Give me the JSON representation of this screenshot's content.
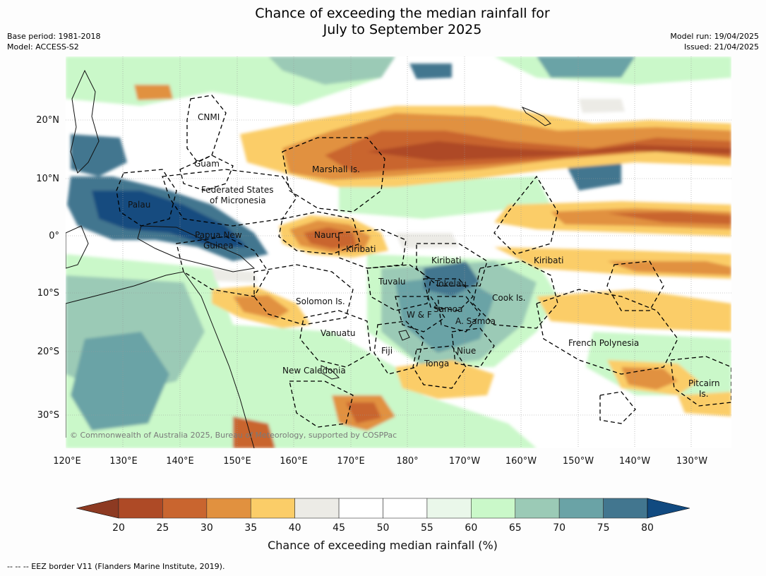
{
  "header": {
    "title_line1": "Chance of exceeding the median rainfall for",
    "title_line2": "July to September 2025",
    "base_period": "Base period: 1981-2018",
    "model": "Model: ACCESS-S2",
    "model_run": "Model run: 19/04/2025",
    "issued": "Issued: 21/04/2025"
  },
  "map": {
    "lon_labels": [
      "120°E",
      "130°E",
      "140°E",
      "150°E",
      "160°E",
      "170°E",
      "180°",
      "170°W",
      "160°W",
      "150°W",
      "140°W",
      "130°W"
    ],
    "lat_labels": [
      "20°N",
      "10°N",
      "0°",
      "10°S",
      "20°S",
      "30°S"
    ],
    "countries": [
      {
        "key": "cnmi",
        "text": "CNMI"
      },
      {
        "key": "guam",
        "text": "Guam"
      },
      {
        "key": "marshall",
        "text": "Marshall Is."
      },
      {
        "key": "fsm1",
        "text": "Federated States"
      },
      {
        "key": "fsm2",
        "text": "of Micronesia"
      },
      {
        "key": "palau",
        "text": "Palau"
      },
      {
        "key": "png1",
        "text": "Papua New"
      },
      {
        "key": "png2",
        "text": "Guinea"
      },
      {
        "key": "nauru",
        "text": "Nauru"
      },
      {
        "key": "kiribati1",
        "text": "Kiribati"
      },
      {
        "key": "kiribati2",
        "text": "Kiribati"
      },
      {
        "key": "kiribati3",
        "text": "Kiribati"
      },
      {
        "key": "tuvalu",
        "text": "Tuvalu"
      },
      {
        "key": "tokelau",
        "text": "Tokelau"
      },
      {
        "key": "cook",
        "text": "Cook Is."
      },
      {
        "key": "solomon",
        "text": "Solomon Is."
      },
      {
        "key": "wf",
        "text": "W & F"
      },
      {
        "key": "samoa",
        "text": "Samoa"
      },
      {
        "key": "asamoa",
        "text": "A. Samoa"
      },
      {
        "key": "vanuatu",
        "text": "Vanuatu"
      },
      {
        "key": "fiji",
        "text": "Fiji"
      },
      {
        "key": "niue",
        "text": "Niue"
      },
      {
        "key": "tonga",
        "text": "Tonga"
      },
      {
        "key": "frpoly",
        "text": "French Polynesia"
      },
      {
        "key": "newcal",
        "text": "New Caledonia"
      },
      {
        "key": "pitcairn1",
        "text": "Pitcairn"
      },
      {
        "key": "pitcairn2",
        "text": "Is."
      }
    ],
    "credit": "© Commonwealth of Australia 2025, Bureau of Meteorology, supported by COSPPac"
  },
  "colorbar": {
    "ticks": [
      "20",
      "25",
      "30",
      "35",
      "40",
      "45",
      "50",
      "55",
      "60",
      "65",
      "70",
      "75",
      "80"
    ],
    "colors": [
      "#ae4a26",
      "#c9652f",
      "#e1913f",
      "#fbcd68",
      "#ecebe6",
      "#ffffff",
      "#ffffff",
      "#eaf7ea",
      "#caf8c9",
      "#9bcab6",
      "#6aa3a6",
      "#42768f",
      "#144c7f"
    ],
    "under_color": "#8d3a22",
    "over_color": "#114a80",
    "label": "Chance of exceeding median rainfall (%)"
  },
  "footer": {
    "eez_note": "--  --  -- EEZ border V11 (Flanders Marine Institute, 2019)."
  }
}
